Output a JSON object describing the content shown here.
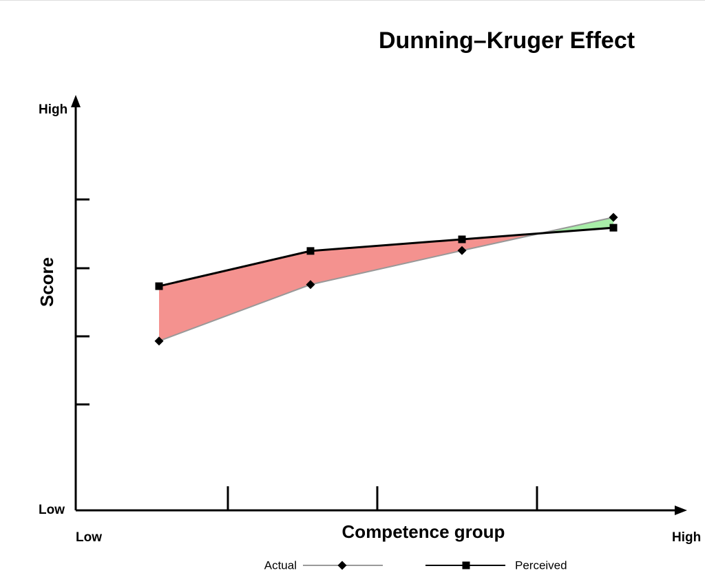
{
  "chart_data": {
    "type": "line",
    "title": "Dunning–Kruger Effect",
    "x_label": "Competence group",
    "y_label": "Score",
    "x_end_labels": [
      "Low",
      "High"
    ],
    "categories": [
      null,
      null,
      null,
      null
    ],
    "ylim": [
      0,
      100
    ],
    "yticks": [
      {
        "value": 0,
        "label": "Low"
      },
      {
        "value": 100,
        "label": "High"
      }
    ],
    "over_color": "#f4928f",
    "under_color": "#a8eea8",
    "series": [
      {
        "name": "Actual",
        "color": "#999999",
        "marker": "diamond",
        "values": [
          42.3,
          56.4,
          64.9,
          73.2
        ]
      },
      {
        "name": "Perceived",
        "color": "#000000",
        "marker": "square",
        "values": [
          56.0,
          64.8,
          67.7,
          70.6
        ]
      }
    ]
  }
}
